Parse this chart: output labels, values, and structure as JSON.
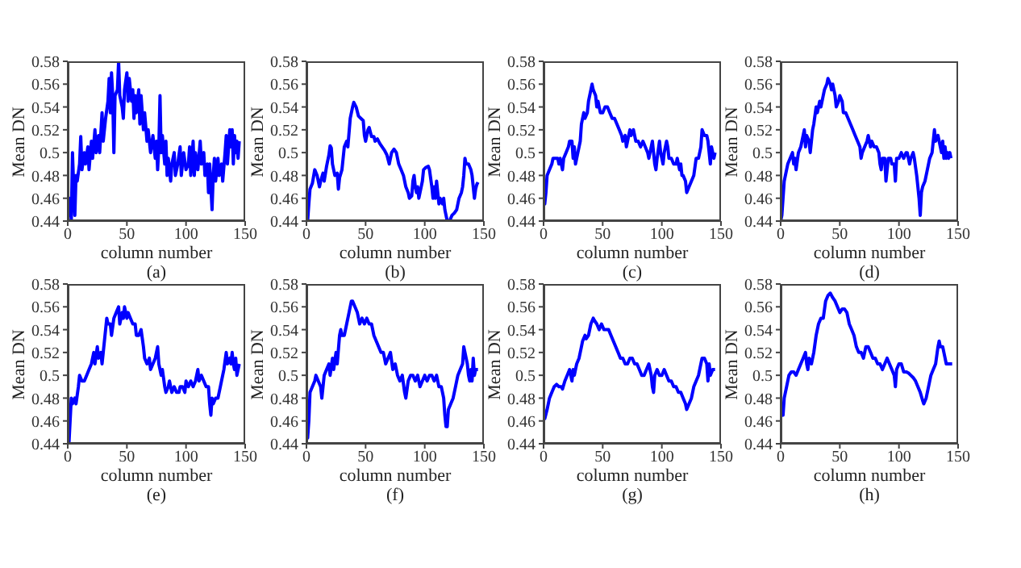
{
  "chart_data": [
    {
      "type": "line",
      "xlabel": "column number",
      "ylabel": "Mean DN",
      "annotations": [
        "(a)"
      ],
      "xlim": [
        0,
        150
      ],
      "xticks": [
        0,
        50,
        100,
        150
      ],
      "ylim": [
        0.44,
        0.58
      ],
      "yticks": [
        0.44,
        0.46,
        0.48,
        0.5,
        0.52,
        0.54,
        0.56,
        0.58
      ],
      "marker": "none",
      "series": [
        {
          "color": "#0000ff",
          "x": [
            0,
            1,
            2,
            3,
            4,
            5,
            6,
            7,
            8,
            10,
            11,
            12,
            14,
            15,
            17,
            18,
            20,
            21,
            23,
            24,
            26,
            27,
            29,
            30,
            32,
            34,
            35,
            36,
            37,
            38,
            39,
            40,
            42,
            43,
            44,
            46,
            47,
            48,
            50,
            51,
            52,
            54,
            55,
            56,
            57,
            58,
            60,
            61,
            62,
            64,
            65,
            67,
            68,
            70,
            72,
            74,
            75,
            76,
            77,
            78,
            79,
            80,
            82,
            83,
            84,
            85,
            87,
            88,
            90,
            91,
            93,
            95,
            96,
            98,
            100,
            102,
            103,
            104,
            106,
            107,
            108,
            110,
            112,
            113,
            115,
            116,
            118,
            119,
            120,
            121,
            122,
            123,
            124,
            125,
            127,
            128,
            130,
            131,
            133,
            134,
            135,
            137,
            138,
            139,
            140,
            141,
            142,
            143,
            144,
            145
          ],
          "values": [
            0.46,
            0.445,
            0.46,
            0.44,
            0.5,
            0.47,
            0.445,
            0.48,
            0.475,
            0.49,
            0.514,
            0.485,
            0.5,
            0.49,
            0.505,
            0.485,
            0.51,
            0.495,
            0.52,
            0.5,
            0.515,
            0.5,
            0.535,
            0.51,
            0.53,
            0.545,
            0.565,
            0.535,
            0.57,
            0.55,
            0.5,
            0.55,
            0.555,
            0.58,
            0.55,
            0.54,
            0.53,
            0.555,
            0.57,
            0.545,
            0.565,
            0.545,
            0.555,
            0.53,
            0.55,
            0.535,
            0.555,
            0.525,
            0.55,
            0.52,
            0.535,
            0.51,
            0.52,
            0.5,
            0.515,
            0.495,
            0.51,
            0.485,
            0.505,
            0.55,
            0.5,
            0.515,
            0.49,
            0.51,
            0.48,
            0.495,
            0.475,
            0.49,
            0.5,
            0.48,
            0.49,
            0.505,
            0.48,
            0.5,
            0.485,
            0.49,
            0.505,
            0.48,
            0.51,
            0.48,
            0.5,
            0.485,
            0.51,
            0.49,
            0.5,
            0.48,
            0.49,
            0.465,
            0.49,
            0.47,
            0.45,
            0.48,
            0.495,
            0.475,
            0.495,
            0.48,
            0.49,
            0.475,
            0.5,
            0.515,
            0.49,
            0.52,
            0.505,
            0.52,
            0.49,
            0.515,
            0.5,
            0.51,
            0.495,
            0.51
          ]
        }
      ]
    },
    {
      "type": "line",
      "xlabel": "column number",
      "ylabel": "Mean DN",
      "annotations": [
        "(b)"
      ],
      "xlim": [
        0,
        150
      ],
      "xticks": [
        0,
        50,
        100,
        150
      ],
      "ylim": [
        0.44,
        0.58
      ],
      "yticks": [
        0.44,
        0.46,
        0.48,
        0.5,
        0.52,
        0.54,
        0.56,
        0.58
      ],
      "marker": "none",
      "series": [
        {
          "color": "#0000ff",
          "x": [
            0,
            1,
            2,
            3,
            5,
            7,
            9,
            11,
            12,
            14,
            15,
            17,
            19,
            20,
            21,
            22,
            24,
            26,
            27,
            28,
            30,
            32,
            34,
            35,
            37,
            39,
            40,
            42,
            44,
            46,
            48,
            49,
            50,
            52,
            53,
            55,
            57,
            58,
            60,
            62,
            64,
            66,
            68,
            70,
            72,
            74,
            76,
            78,
            80,
            82,
            84,
            86,
            87,
            89,
            90,
            91,
            92,
            93,
            94,
            95,
            97,
            98,
            99,
            101,
            103,
            104,
            106,
            107,
            108,
            109,
            110,
            111,
            112,
            113,
            115,
            116,
            117,
            118,
            119,
            121,
            123,
            125,
            127,
            129,
            131,
            132,
            133,
            134,
            135,
            137,
            139,
            140,
            141,
            142,
            143,
            144,
            145
          ],
          "values": [
            0.44,
            0.44,
            0.455,
            0.468,
            0.473,
            0.485,
            0.48,
            0.47,
            0.475,
            0.482,
            0.475,
            0.488,
            0.498,
            0.506,
            0.504,
            0.49,
            0.48,
            0.482,
            0.468,
            0.478,
            0.485,
            0.505,
            0.51,
            0.505,
            0.53,
            0.54,
            0.544,
            0.54,
            0.532,
            0.53,
            0.528,
            0.515,
            0.51,
            0.52,
            0.522,
            0.514,
            0.514,
            0.51,
            0.512,
            0.508,
            0.505,
            0.502,
            0.498,
            0.49,
            0.5,
            0.503,
            0.5,
            0.49,
            0.485,
            0.48,
            0.47,
            0.465,
            0.46,
            0.462,
            0.475,
            0.48,
            0.47,
            0.465,
            0.47,
            0.46,
            0.47,
            0.475,
            0.485,
            0.487,
            0.488,
            0.485,
            0.47,
            0.46,
            0.47,
            0.46,
            0.475,
            0.465,
            0.455,
            0.46,
            0.455,
            0.46,
            0.45,
            0.445,
            0.44,
            0.44,
            0.445,
            0.447,
            0.45,
            0.46,
            0.465,
            0.47,
            0.48,
            0.495,
            0.49,
            0.49,
            0.485,
            0.48,
            0.47,
            0.46,
            0.468,
            0.472,
            0.474
          ]
        }
      ]
    },
    {
      "type": "line",
      "xlabel": "column number",
      "ylabel": "Mean DN",
      "annotations": [
        "(c)"
      ],
      "xlim": [
        0,
        150
      ],
      "xticks": [
        0,
        50,
        100,
        150
      ],
      "ylim": [
        0.44,
        0.58
      ],
      "yticks": [
        0.44,
        0.46,
        0.48,
        0.5,
        0.52,
        0.54,
        0.56,
        0.58
      ],
      "marker": "none",
      "series": [
        {
          "color": "#0000ff",
          "x": [
            0,
            1,
            2,
            3,
            5,
            7,
            8,
            10,
            12,
            13,
            14,
            16,
            17,
            19,
            21,
            22,
            24,
            25,
            26,
            27,
            29,
            31,
            32,
            33,
            34,
            35,
            37,
            38,
            40,
            41,
            42,
            44,
            45,
            46,
            47,
            48,
            50,
            52,
            54,
            56,
            58,
            60,
            62,
            64,
            66,
            67,
            69,
            70,
            71,
            73,
            74,
            76,
            78,
            80,
            82,
            84,
            86,
            88,
            89,
            91,
            92,
            94,
            95,
            96,
            98,
            99,
            101,
            102,
            104,
            105,
            106,
            108,
            110,
            112,
            113,
            115,
            116,
            117,
            118,
            120,
            121,
            123,
            125,
            127,
            129,
            131,
            133,
            134,
            136,
            138,
            139,
            140,
            141,
            142,
            143,
            144,
            145
          ],
          "values": [
            0.46,
            0.455,
            0.465,
            0.48,
            0.485,
            0.49,
            0.495,
            0.495,
            0.495,
            0.49,
            0.495,
            0.485,
            0.495,
            0.5,
            0.505,
            0.51,
            0.51,
            0.495,
            0.505,
            0.49,
            0.5,
            0.51,
            0.525,
            0.53,
            0.535,
            0.53,
            0.535,
            0.545,
            0.555,
            0.56,
            0.555,
            0.55,
            0.54,
            0.545,
            0.54,
            0.535,
            0.535,
            0.54,
            0.54,
            0.535,
            0.53,
            0.53,
            0.525,
            0.52,
            0.515,
            0.51,
            0.515,
            0.505,
            0.51,
            0.52,
            0.515,
            0.52,
            0.51,
            0.51,
            0.505,
            0.51,
            0.505,
            0.5,
            0.495,
            0.505,
            0.51,
            0.49,
            0.485,
            0.495,
            0.51,
            0.5,
            0.49,
            0.5,
            0.51,
            0.505,
            0.495,
            0.495,
            0.49,
            0.49,
            0.495,
            0.485,
            0.49,
            0.48,
            0.48,
            0.475,
            0.465,
            0.47,
            0.475,
            0.48,
            0.495,
            0.495,
            0.505,
            0.52,
            0.515,
            0.515,
            0.51,
            0.5,
            0.49,
            0.505,
            0.5,
            0.495,
            0.5
          ]
        }
      ]
    },
    {
      "type": "line",
      "xlabel": "column number",
      "ylabel": "Mean DN",
      "annotations": [
        "(d)"
      ],
      "xlim": [
        0,
        150
      ],
      "xticks": [
        0,
        50,
        100,
        150
      ],
      "ylim": [
        0.44,
        0.58
      ],
      "yticks": [
        0.44,
        0.46,
        0.48,
        0.5,
        0.52,
        0.54,
        0.56,
        0.58
      ],
      "marker": "none",
      "series": [
        {
          "color": "#0000ff",
          "x": [
            0,
            1,
            2,
            3,
            5,
            6,
            8,
            10,
            11,
            12,
            13,
            15,
            17,
            18,
            20,
            21,
            22,
            24,
            25,
            27,
            28,
            30,
            31,
            33,
            34,
            36,
            37,
            39,
            40,
            42,
            43,
            44,
            45,
            46,
            47,
            49,
            50,
            52,
            53,
            55,
            57,
            59,
            61,
            63,
            65,
            67,
            68,
            69,
            71,
            73,
            74,
            76,
            77,
            79,
            81,
            83,
            84,
            85,
            86,
            88,
            89,
            91,
            93,
            94,
            96,
            97,
            98,
            100,
            102,
            104,
            106,
            107,
            109,
            110,
            112,
            113,
            115,
            116,
            117,
            118,
            119,
            120,
            122,
            124,
            126,
            128,
            129,
            130,
            131,
            133,
            135,
            136,
            137,
            138,
            139,
            140,
            141,
            142,
            143,
            144
          ],
          "values": [
            0.44,
            0.445,
            0.46,
            0.475,
            0.485,
            0.49,
            0.495,
            0.5,
            0.49,
            0.495,
            0.485,
            0.5,
            0.505,
            0.51,
            0.52,
            0.505,
            0.515,
            0.51,
            0.5,
            0.52,
            0.525,
            0.54,
            0.535,
            0.545,
            0.54,
            0.55,
            0.555,
            0.56,
            0.565,
            0.56,
            0.555,
            0.56,
            0.555,
            0.55,
            0.54,
            0.545,
            0.55,
            0.545,
            0.535,
            0.535,
            0.53,
            0.525,
            0.52,
            0.515,
            0.51,
            0.505,
            0.495,
            0.5,
            0.505,
            0.51,
            0.515,
            0.505,
            0.51,
            0.505,
            0.505,
            0.5,
            0.49,
            0.485,
            0.495,
            0.495,
            0.475,
            0.495,
            0.495,
            0.49,
            0.49,
            0.475,
            0.495,
            0.495,
            0.5,
            0.495,
            0.5,
            0.5,
            0.49,
            0.495,
            0.5,
            0.495,
            0.48,
            0.47,
            0.46,
            0.445,
            0.465,
            0.47,
            0.475,
            0.485,
            0.495,
            0.5,
            0.51,
            0.52,
            0.51,
            0.515,
            0.505,
            0.5,
            0.51,
            0.495,
            0.505,
            0.495,
            0.5,
            0.495,
            0.5,
            0.495
          ]
        }
      ]
    },
    {
      "type": "line",
      "xlabel": "column number",
      "ylabel": "Mean DN",
      "annotations": [
        "(e)"
      ],
      "xlim": [
        0,
        150
      ],
      "xticks": [
        0,
        50,
        100,
        150
      ],
      "ylim": [
        0.44,
        0.58
      ],
      "yticks": [
        0.44,
        0.46,
        0.48,
        0.5,
        0.52,
        0.54,
        0.56,
        0.58
      ],
      "marker": "none",
      "series": [
        {
          "color": "#0000ff",
          "x": [
            0,
            1,
            2,
            3,
            4,
            6,
            7,
            9,
            10,
            12,
            14,
            16,
            18,
            20,
            22,
            23,
            25,
            26,
            28,
            29,
            31,
            33,
            34,
            36,
            37,
            39,
            41,
            43,
            44,
            46,
            47,
            48,
            50,
            51,
            53,
            55,
            57,
            58,
            60,
            62,
            64,
            65,
            67,
            69,
            70,
            72,
            74,
            75,
            76,
            77,
            79,
            80,
            82,
            83,
            85,
            86,
            88,
            90,
            92,
            94,
            95,
            97,
            99,
            100,
            102,
            104,
            106,
            108,
            110,
            111,
            113,
            115,
            117,
            119,
            120,
            121,
            122,
            123,
            125,
            127,
            129,
            131,
            132,
            134,
            135,
            137,
            138,
            139,
            140,
            141,
            142,
            143,
            144,
            145
          ],
          "values": [
            0.445,
            0.44,
            0.46,
            0.48,
            0.475,
            0.48,
            0.475,
            0.49,
            0.5,
            0.495,
            0.495,
            0.5,
            0.505,
            0.51,
            0.52,
            0.51,
            0.525,
            0.515,
            0.52,
            0.51,
            0.53,
            0.55,
            0.545,
            0.545,
            0.535,
            0.55,
            0.555,
            0.56,
            0.545,
            0.555,
            0.55,
            0.56,
            0.55,
            0.555,
            0.55,
            0.545,
            0.545,
            0.535,
            0.535,
            0.54,
            0.525,
            0.515,
            0.51,
            0.515,
            0.505,
            0.51,
            0.515,
            0.52,
            0.525,
            0.51,
            0.5,
            0.505,
            0.49,
            0.485,
            0.49,
            0.495,
            0.485,
            0.49,
            0.485,
            0.485,
            0.49,
            0.49,
            0.485,
            0.495,
            0.49,
            0.495,
            0.49,
            0.495,
            0.505,
            0.495,
            0.5,
            0.495,
            0.49,
            0.49,
            0.475,
            0.465,
            0.48,
            0.475,
            0.48,
            0.48,
            0.49,
            0.5,
            0.505,
            0.52,
            0.51,
            0.515,
            0.51,
            0.52,
            0.51,
            0.505,
            0.515,
            0.5,
            0.505,
            0.51
          ]
        }
      ]
    },
    {
      "type": "line",
      "xlabel": "column number",
      "ylabel": "Mean DN",
      "annotations": [
        "(f)"
      ],
      "xlim": [
        0,
        150
      ],
      "xticks": [
        0,
        50,
        100,
        150
      ],
      "ylim": [
        0.44,
        0.58
      ],
      "yticks": [
        0.44,
        0.46,
        0.48,
        0.5,
        0.52,
        0.54,
        0.56,
        0.58
      ],
      "marker": "none",
      "series": [
        {
          "color": "#0000ff",
          "x": [
            0,
            1,
            2,
            3,
            5,
            7,
            8,
            10,
            12,
            13,
            15,
            17,
            19,
            20,
            22,
            23,
            25,
            26,
            28,
            29,
            30,
            32,
            34,
            36,
            38,
            39,
            41,
            43,
            44,
            45,
            47,
            49,
            51,
            53,
            55,
            57,
            59,
            61,
            63,
            65,
            67,
            69,
            71,
            73,
            75,
            77,
            79,
            81,
            83,
            84,
            86,
            88,
            90,
            92,
            94,
            96,
            98,
            100,
            102,
            104,
            106,
            108,
            110,
            112,
            114,
            116,
            117,
            118,
            119,
            120,
            122,
            124,
            126,
            128,
            130,
            132,
            133,
            134,
            136,
            137,
            138,
            139,
            140,
            141,
            142,
            143,
            145
          ],
          "values": [
            0.455,
            0.445,
            0.46,
            0.485,
            0.49,
            0.495,
            0.5,
            0.495,
            0.49,
            0.48,
            0.5,
            0.505,
            0.51,
            0.5,
            0.515,
            0.505,
            0.52,
            0.51,
            0.535,
            0.54,
            0.535,
            0.535,
            0.545,
            0.555,
            0.565,
            0.565,
            0.56,
            0.555,
            0.55,
            0.545,
            0.55,
            0.545,
            0.55,
            0.545,
            0.545,
            0.535,
            0.53,
            0.525,
            0.52,
            0.52,
            0.51,
            0.515,
            0.52,
            0.505,
            0.51,
            0.5,
            0.495,
            0.5,
            0.485,
            0.48,
            0.495,
            0.5,
            0.5,
            0.495,
            0.5,
            0.49,
            0.495,
            0.5,
            0.495,
            0.5,
            0.5,
            0.495,
            0.5,
            0.49,
            0.49,
            0.48,
            0.465,
            0.455,
            0.455,
            0.47,
            0.475,
            0.48,
            0.49,
            0.5,
            0.505,
            0.51,
            0.525,
            0.52,
            0.51,
            0.5,
            0.495,
            0.505,
            0.495,
            0.515,
            0.5,
            0.505,
            0.505
          ]
        }
      ]
    },
    {
      "type": "line",
      "xlabel": "column number",
      "ylabel": "Mean DN",
      "annotations": [
        "(g)"
      ],
      "xlim": [
        0,
        150
      ],
      "xticks": [
        0,
        50,
        100,
        150
      ],
      "ylim": [
        0.44,
        0.58
      ],
      "yticks": [
        0.44,
        0.46,
        0.48,
        0.5,
        0.52,
        0.54,
        0.56,
        0.58
      ],
      "marker": "none",
      "series": [
        {
          "color": "#0000ff",
          "x": [
            0,
            1,
            3,
            5,
            7,
            9,
            11,
            13,
            15,
            16,
            18,
            20,
            22,
            23,
            24,
            25,
            26,
            28,
            30,
            32,
            33,
            35,
            36,
            38,
            40,
            42,
            43,
            45,
            47,
            49,
            51,
            53,
            55,
            57,
            59,
            61,
            63,
            65,
            67,
            69,
            71,
            73,
            75,
            77,
            79,
            81,
            83,
            85,
            87,
            89,
            91,
            92,
            93,
            94,
            96,
            98,
            100,
            102,
            104,
            106,
            108,
            110,
            112,
            114,
            116,
            118,
            120,
            121,
            123,
            125,
            127,
            129,
            131,
            133,
            134,
            136,
            138,
            139,
            140,
            141,
            143,
            145
          ],
          "values": [
            0.465,
            0.462,
            0.47,
            0.48,
            0.485,
            0.49,
            0.492,
            0.49,
            0.49,
            0.488,
            0.495,
            0.5,
            0.505,
            0.5,
            0.495,
            0.505,
            0.5,
            0.51,
            0.515,
            0.525,
            0.53,
            0.535,
            0.532,
            0.535,
            0.545,
            0.55,
            0.548,
            0.545,
            0.54,
            0.545,
            0.54,
            0.54,
            0.54,
            0.535,
            0.53,
            0.525,
            0.52,
            0.515,
            0.515,
            0.51,
            0.51,
            0.515,
            0.515,
            0.51,
            0.51,
            0.505,
            0.5,
            0.5,
            0.505,
            0.51,
            0.5,
            0.49,
            0.485,
            0.5,
            0.505,
            0.5,
            0.5,
            0.505,
            0.5,
            0.495,
            0.495,
            0.49,
            0.49,
            0.485,
            0.485,
            0.48,
            0.475,
            0.47,
            0.475,
            0.48,
            0.49,
            0.495,
            0.5,
            0.51,
            0.515,
            0.515,
            0.51,
            0.495,
            0.51,
            0.5,
            0.505,
            0.505
          ]
        }
      ]
    },
    {
      "type": "line",
      "xlabel": "column number",
      "ylabel": "Mean DN",
      "annotations": [
        "(h)"
      ],
      "xlim": [
        0,
        150
      ],
      "xticks": [
        0,
        50,
        100,
        150
      ],
      "ylim": [
        0.44,
        0.58
      ],
      "yticks": [
        0.44,
        0.46,
        0.48,
        0.5,
        0.52,
        0.54,
        0.56,
        0.58
      ],
      "marker": "none",
      "series": [
        {
          "color": "#0000ff",
          "x": [
            0,
            1,
            2,
            3,
            5,
            7,
            9,
            11,
            13,
            15,
            17,
            19,
            21,
            22,
            23,
            24,
            26,
            28,
            30,
            32,
            34,
            36,
            38,
            40,
            42,
            44,
            46,
            48,
            50,
            52,
            54,
            56,
            58,
            60,
            62,
            64,
            66,
            68,
            70,
            72,
            74,
            76,
            78,
            80,
            82,
            84,
            86,
            88,
            90,
            92,
            94,
            96,
            97,
            98,
            100,
            102,
            104,
            106,
            108,
            110,
            112,
            114,
            116,
            118,
            120,
            121,
            123,
            125,
            127,
            129,
            131,
            133,
            134,
            135,
            137,
            139,
            140,
            141,
            143,
            145
          ],
          "values": [
            0.465,
            0.47,
            0.465,
            0.48,
            0.49,
            0.5,
            0.503,
            0.503,
            0.5,
            0.505,
            0.51,
            0.515,
            0.52,
            0.51,
            0.505,
            0.515,
            0.51,
            0.52,
            0.535,
            0.545,
            0.55,
            0.55,
            0.565,
            0.57,
            0.572,
            0.568,
            0.565,
            0.56,
            0.555,
            0.558,
            0.558,
            0.555,
            0.545,
            0.54,
            0.535,
            0.525,
            0.52,
            0.52,
            0.515,
            0.525,
            0.525,
            0.52,
            0.515,
            0.515,
            0.51,
            0.51,
            0.505,
            0.51,
            0.515,
            0.51,
            0.505,
            0.5,
            0.49,
            0.505,
            0.51,
            0.51,
            0.503,
            0.503,
            0.502,
            0.5,
            0.498,
            0.495,
            0.49,
            0.485,
            0.478,
            0.475,
            0.48,
            0.49,
            0.5,
            0.505,
            0.51,
            0.525,
            0.53,
            0.525,
            0.525,
            0.515,
            0.51,
            0.51,
            0.51,
            0.51
          ]
        }
      ]
    }
  ]
}
